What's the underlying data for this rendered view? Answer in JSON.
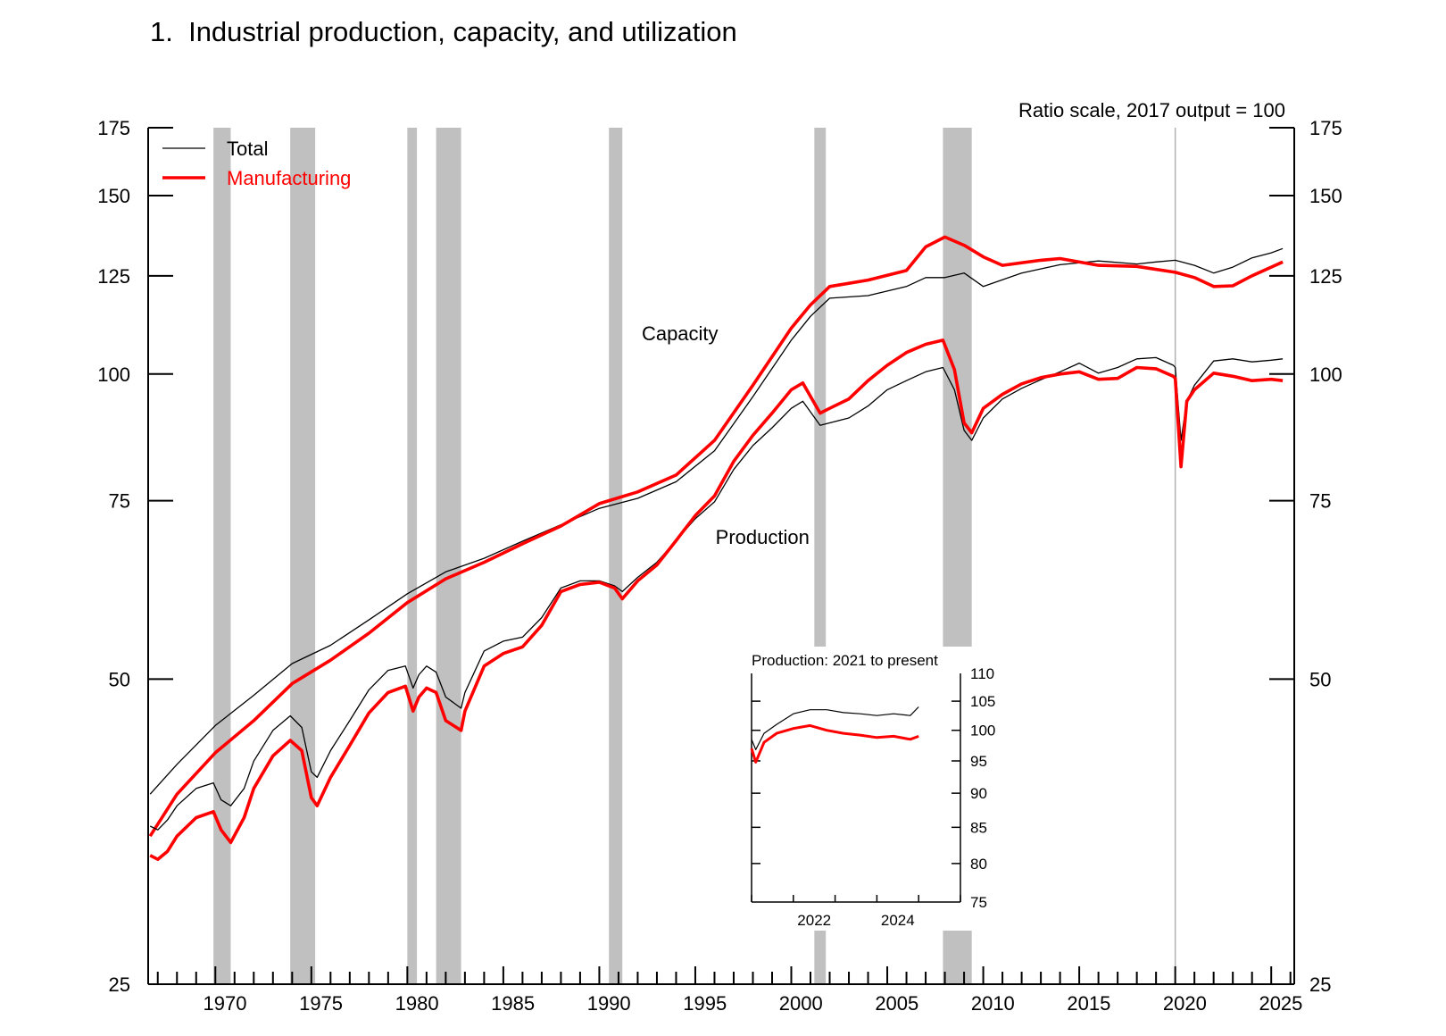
{
  "chart_data": {
    "type": "line",
    "title": "1.  Industrial production, capacity, and utilization",
    "scale_note": "Ratio scale, 2017 output = 100",
    "y_scale": "log",
    "ylim": [
      25,
      175
    ],
    "y_ticks": [
      25,
      50,
      75,
      100,
      125,
      150,
      175
    ],
    "xlim": [
      1966.5,
      2026.2
    ],
    "x_tick_labels": [
      1970,
      1975,
      1980,
      1985,
      1990,
      1995,
      2000,
      2005,
      2010,
      2015,
      2020,
      2025
    ],
    "grid": false,
    "legend_position": "top-left",
    "legend": [
      {
        "label": "Total",
        "color": "#000000"
      },
      {
        "label": "Manufacturing",
        "color": "#ff0000"
      }
    ],
    "annotations": [
      {
        "text": "Capacity",
        "x": 1994.2,
        "y": 108
      },
      {
        "text": "Production",
        "x": 1998.5,
        "y": 68
      }
    ],
    "recessions": [
      [
        1969.9,
        1970.8
      ],
      [
        1973.9,
        1975.2
      ],
      [
        1980.0,
        1980.5
      ],
      [
        1981.5,
        1982.8
      ],
      [
        1990.5,
        1991.2
      ],
      [
        2001.2,
        2001.8
      ],
      [
        2007.9,
        2009.4
      ]
    ],
    "vertical_marker_x": 2020.0,
    "series": [
      {
        "name": "Total",
        "role": "Capacity",
        "color": "#000000",
        "x": [
          1966.6,
          1968,
          1970,
          1972,
          1974,
          1976,
          1978,
          1980,
          1982,
          1984,
          1986,
          1988,
          1990,
          1992,
          1994,
          1996,
          1998,
          2000,
          2001,
          2002,
          2004,
          2006,
          2007,
          2008,
          2009,
          2010,
          2012,
          2014,
          2016,
          2018,
          2019,
          2020,
          2021,
          2022,
          2023,
          2024,
          2025,
          2025.6
        ],
        "y": [
          38.5,
          41.2,
          45.0,
          48.2,
          51.8,
          54.0,
          57.2,
          60.7,
          63.8,
          65.8,
          68.4,
          71.0,
          73.7,
          75.4,
          78.3,
          84.0,
          95.0,
          108.0,
          114.0,
          118.8,
          119.5,
          122.0,
          124.5,
          124.5,
          125.8,
          122.0,
          125.8,
          128.2,
          129.3,
          128.4,
          129.0,
          129.5,
          128.0,
          125.8,
          127.5,
          130.2,
          131.7,
          133.0
        ]
      },
      {
        "name": "Manufacturing",
        "role": "Capacity",
        "color": "#ff0000",
        "x": [
          1966.6,
          1968,
          1970,
          1972,
          1974,
          1976,
          1978,
          1980,
          1982,
          1984,
          1986,
          1988,
          1990,
          1992,
          1994,
          1996,
          1998,
          2000,
          2001,
          2002,
          2004,
          2006,
          2007,
          2008,
          2009,
          2010,
          2011,
          2013,
          2014,
          2016,
          2018,
          2020,
          2021,
          2022,
          2023,
          2024,
          2025,
          2025.6
        ],
        "y": [
          35.0,
          38.5,
          42.3,
          45.5,
          49.5,
          52.2,
          55.5,
          59.5,
          62.8,
          65.2,
          68.0,
          70.8,
          74.5,
          76.5,
          79.5,
          86.0,
          97.5,
          111.0,
          117.0,
          122.0,
          123.8,
          126.5,
          133.5,
          136.5,
          134.0,
          130.5,
          128.0,
          129.5,
          130.0,
          128.0,
          127.7,
          126.0,
          124.5,
          122.0,
          122.2,
          125.0,
          127.5,
          129.0
        ]
      },
      {
        "name": "Total",
        "role": "Production",
        "color": "#000000",
        "x": [
          1966.6,
          1967.0,
          1967.5,
          1968,
          1969,
          1969.9,
          1970.3,
          1970.8,
          1971.5,
          1972,
          1973,
          1973.9,
          1974.5,
          1975.0,
          1975.3,
          1976,
          1977,
          1978,
          1979,
          1979.9,
          1980.3,
          1980.6,
          1981,
          1981.5,
          1982,
          1982.8,
          1983,
          1984,
          1985,
          1986,
          1987,
          1988,
          1989,
          1990,
          1990.8,
          1991.2,
          1992,
          1993,
          1994,
          1995,
          1996,
          1997,
          1998,
          1999,
          2000,
          2000.6,
          2001.5,
          2002,
          2003,
          2004,
          2005,
          2006,
          2007,
          2007.9,
          2008.5,
          2009.0,
          2009.4,
          2010,
          2011,
          2012,
          2013,
          2014,
          2015,
          2016,
          2017,
          2018,
          2019,
          2019.9,
          2020.0,
          2020.3,
          2020.6,
          2021,
          2022,
          2023,
          2024,
          2025,
          2025.6
        ],
        "y": [
          35.8,
          35.5,
          36.3,
          37.5,
          39.0,
          39.5,
          38.0,
          37.5,
          39.0,
          41.5,
          44.5,
          46.0,
          44.8,
          40.5,
          40.0,
          42.5,
          45.5,
          48.8,
          51.0,
          51.5,
          49.0,
          50.5,
          51.5,
          50.8,
          48.0,
          46.8,
          48.5,
          53.3,
          54.5,
          55.0,
          57.5,
          61.5,
          62.5,
          62.5,
          61.8,
          61.0,
          63.0,
          65.2,
          68.5,
          72.0,
          74.8,
          80.5,
          85.0,
          88.5,
          92.5,
          94.0,
          89.0,
          89.5,
          90.5,
          93.0,
          96.5,
          98.5,
          100.5,
          101.5,
          96.5,
          88.0,
          86.0,
          90.5,
          94.5,
          96.8,
          98.7,
          100.5,
          102.5,
          100.2,
          101.5,
          103.5,
          103.8,
          102.0,
          101.5,
          86.0,
          94.0,
          97.5,
          103.0,
          103.5,
          102.8,
          103.2,
          103.5
        ]
      },
      {
        "name": "Manufacturing",
        "role": "Production",
        "color": "#ff0000",
        "x": [
          1966.6,
          1967.0,
          1967.5,
          1968,
          1969,
          1969.9,
          1970.3,
          1970.8,
          1971.5,
          1972,
          1973,
          1973.9,
          1974.5,
          1975.0,
          1975.3,
          1976,
          1977,
          1978,
          1979,
          1979.9,
          1980.3,
          1980.6,
          1981,
          1981.5,
          1982,
          1982.8,
          1983,
          1984,
          1985,
          1986,
          1987,
          1988,
          1989,
          1990,
          1990.8,
          1991.2,
          1992,
          1993,
          1994,
          1995,
          1996,
          1997,
          1998,
          1999,
          2000,
          2000.6,
          2001.5,
          2002,
          2003,
          2004,
          2005,
          2006,
          2007,
          2007.9,
          2008.5,
          2009.0,
          2009.4,
          2010,
          2011,
          2012,
          2013,
          2014,
          2015,
          2016,
          2017,
          2018,
          2019,
          2019.9,
          2020.0,
          2020.3,
          2020.6,
          2021,
          2022,
          2023,
          2024,
          2025,
          2025.6
        ],
        "y": [
          33.5,
          33.2,
          33.8,
          35.0,
          36.5,
          37.0,
          35.5,
          34.5,
          36.5,
          39.0,
          42.0,
          43.5,
          42.5,
          38.2,
          37.5,
          40.0,
          43.0,
          46.3,
          48.5,
          49.2,
          46.5,
          48.0,
          49.0,
          48.5,
          45.5,
          44.5,
          46.5,
          51.5,
          53.0,
          53.8,
          56.5,
          61.0,
          62.0,
          62.3,
          61.5,
          60.0,
          62.5,
          64.8,
          68.5,
          72.5,
          75.8,
          82.0,
          87.0,
          91.5,
          96.5,
          98.0,
          91.5,
          92.5,
          94.5,
          98.5,
          102.0,
          105.0,
          107.0,
          108.0,
          101.0,
          89.5,
          87.5,
          92.5,
          95.5,
          97.8,
          99.2,
          100.0,
          100.5,
          98.8,
          99.0,
          101.5,
          101.2,
          99.5,
          99.0,
          81.0,
          94.0,
          96.5,
          100.2,
          99.5,
          98.5,
          98.8,
          98.5
        ]
      }
    ],
    "inset": {
      "title": "Production: 2021 to present",
      "y_scale": "log",
      "ylim": [
        75,
        110
      ],
      "y_ticks": [
        75,
        80,
        85,
        90,
        95,
        100,
        105,
        110
      ],
      "xlim": [
        2021.0,
        2026.0
      ],
      "x_tick_labels": [
        2022,
        2024
      ],
      "series": [
        {
          "name": "Total",
          "color": "#000000",
          "x": [
            2021.0,
            2021.1,
            2021.3,
            2021.6,
            2022.0,
            2022.4,
            2022.8,
            2023.2,
            2023.6,
            2024.0,
            2024.4,
            2024.8,
            2025.0
          ],
          "y": [
            98.5,
            96.8,
            99.5,
            101.0,
            102.8,
            103.5,
            103.5,
            103.0,
            102.8,
            102.5,
            102.8,
            102.5,
            104.0
          ]
        },
        {
          "name": "Manufacturing",
          "color": "#ff0000",
          "x": [
            2021.0,
            2021.1,
            2021.3,
            2021.6,
            2022.0,
            2022.4,
            2022.8,
            2023.2,
            2023.6,
            2024.0,
            2024.4,
            2024.8,
            2025.0
          ],
          "y": [
            97.0,
            94.8,
            98.0,
            99.5,
            100.3,
            100.8,
            100.0,
            99.5,
            99.2,
            98.8,
            99.0,
            98.5,
            99.0
          ]
        }
      ]
    }
  }
}
